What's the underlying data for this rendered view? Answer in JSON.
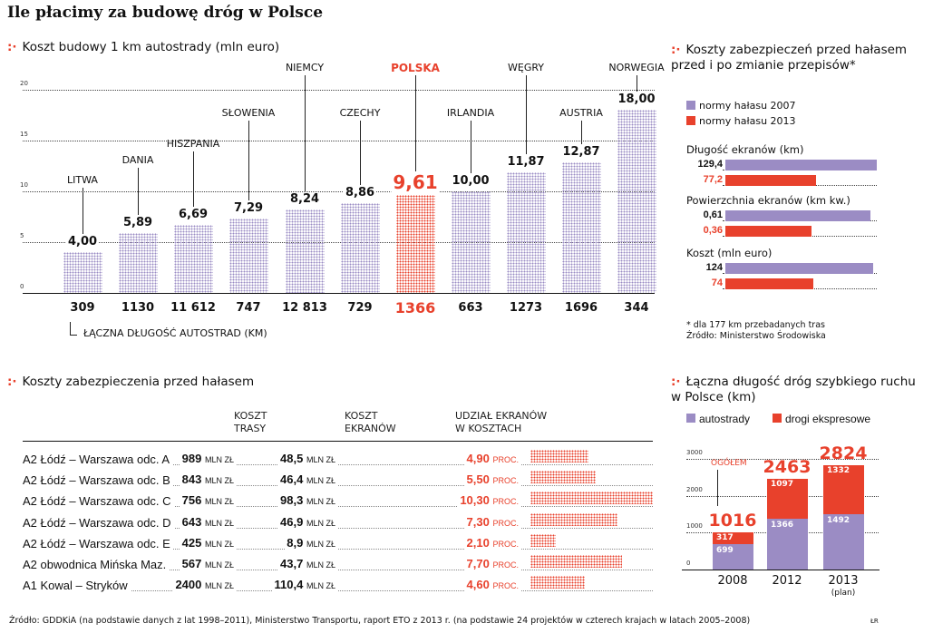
{
  "title": "Ile płacimy za budowę dróg w Polsce",
  "colors": {
    "purple": "#9b8cc4",
    "red": "#e8412c"
  },
  "chart_data": [
    {
      "type": "bar",
      "title": "Koszt budowy 1 km autostrady (mln euro)",
      "ylim": [
        0,
        20
      ],
      "yticks": [
        "0",
        "5",
        "10",
        "15",
        "20"
      ],
      "categories": [
        "LITWA",
        "DANIA",
        "HISZPANIA",
        "SŁOWENIA",
        "NIEMCY",
        "CZECHY",
        "POLSKA",
        "IRLANDIA",
        "WĘGRY",
        "AUSTRIA",
        "NORWEGIA"
      ],
      "values": [
        4.0,
        5.89,
        6.69,
        7.29,
        8.24,
        8.86,
        9.61,
        10.0,
        11.87,
        12.87,
        18.0
      ],
      "value_labels": [
        "4,00",
        "5,89",
        "6,69",
        "7,29",
        "8,24",
        "8,86",
        "9,61",
        "10,00",
        "11,87",
        "12,87",
        "18,00"
      ],
      "highlight": "POLSKA",
      "secondary_label": "ŁĄCZNA DŁUGOŚĆ AUTOSTRAD (KM)",
      "secondary_values": [
        "309",
        "1130",
        "11 612",
        "747",
        "12 813",
        "729",
        "1366",
        "663",
        "1273",
        "1696",
        "344"
      ]
    },
    {
      "type": "bar",
      "orientation": "horizontal",
      "title": "Koszty zabezpieczeń przed hałasem przed i po zmianie przepisów*",
      "legend": [
        "normy hałasu 2007",
        "normy hałasu 2013"
      ],
      "groups": [
        {
          "label": "Długość ekranów (km)",
          "values": [
            129.4,
            77.2
          ],
          "value_labels": [
            "129,4",
            "77,2"
          ]
        },
        {
          "label": "Powierzchnia ekranów (km kw.)",
          "values": [
            0.61,
            0.36
          ],
          "value_labels": [
            "0,61",
            "0,36"
          ]
        },
        {
          "label": "Koszt (mln euro)",
          "values": [
            124,
            74
          ],
          "value_labels": [
            "124",
            "74"
          ]
        }
      ],
      "footnote": "* dla 177 km przebadanych tras",
      "source": "Źródło: Ministerstwo Środowiska"
    },
    {
      "type": "table",
      "title": "Koszty zabezpieczenia przed hałasem",
      "headers": [
        [
          "KOSZT",
          "TRASY"
        ],
        [
          "KOSZT",
          "EKRANÓW"
        ],
        [
          "UDZIAŁ EKRANÓW",
          "W KOSZTACH"
        ]
      ],
      "unit_mln": "MLN ZŁ",
      "unit_proc": "PROC.",
      "rows": [
        {
          "name": "A2 Łódź – Warszawa odc. A",
          "trasa": "989",
          "ekrany": "48,5",
          "udzial": "4,90",
          "pct": 4.9
        },
        {
          "name": "A2 Łódź – Warszawa odc. B",
          "trasa": "843",
          "ekrany": "46,4",
          "udzial": "5,50",
          "pct": 5.5
        },
        {
          "name": "A2 Łódź – Warszawa odc. C",
          "trasa": "756",
          "ekrany": "98,3",
          "udzial": "10,30",
          "pct": 10.3
        },
        {
          "name": "A2 Łódź – Warszawa odc. D",
          "trasa": "643",
          "ekrany": "46,9",
          "udzial": "7,30",
          "pct": 7.3
        },
        {
          "name": "A2 Łódź – Warszawa odc. E",
          "trasa": "425",
          "ekrany": "8,9",
          "udzial": "2,10",
          "pct": 2.1
        },
        {
          "name": "A2 obwodnica Mińska Maz.",
          "trasa": "567",
          "ekrany": "43,7",
          "udzial": "7,70",
          "pct": 7.7
        },
        {
          "name": "A1 Kowal – Stryków",
          "trasa": "2400",
          "ekrany": "110,4",
          "udzial": "4,60",
          "pct": 4.6
        }
      ]
    },
    {
      "type": "bar",
      "stacked": true,
      "title": "Łączna długość dróg szybkiego ruchu w Polsce (km)",
      "legend": [
        "autostrady",
        "drogi ekspresowe"
      ],
      "ylim": [
        0,
        3000
      ],
      "yticks": [
        "0",
        "1000",
        "2000",
        "3000"
      ],
      "categories": [
        "2008",
        "2012",
        "2013"
      ],
      "category_notes": [
        "",
        "",
        "(plan)"
      ],
      "series": [
        {
          "name": "autostrady",
          "values": [
            699,
            1366,
            1492
          ]
        },
        {
          "name": "drogi ekspresowe",
          "values": [
            317,
            1097,
            1332
          ]
        }
      ],
      "totals": [
        1016,
        2463,
        2824
      ],
      "total_label": "OGÓŁEM"
    }
  ],
  "source": "Źródło: GDDKiA (na podstawie danych z lat 1998–2011), Ministerstwo Transportu, raport ETO z 2013 r. (na podstawie 24 projektów w czterech krajach w latach 2005–2008)",
  "credit": "ŁR"
}
